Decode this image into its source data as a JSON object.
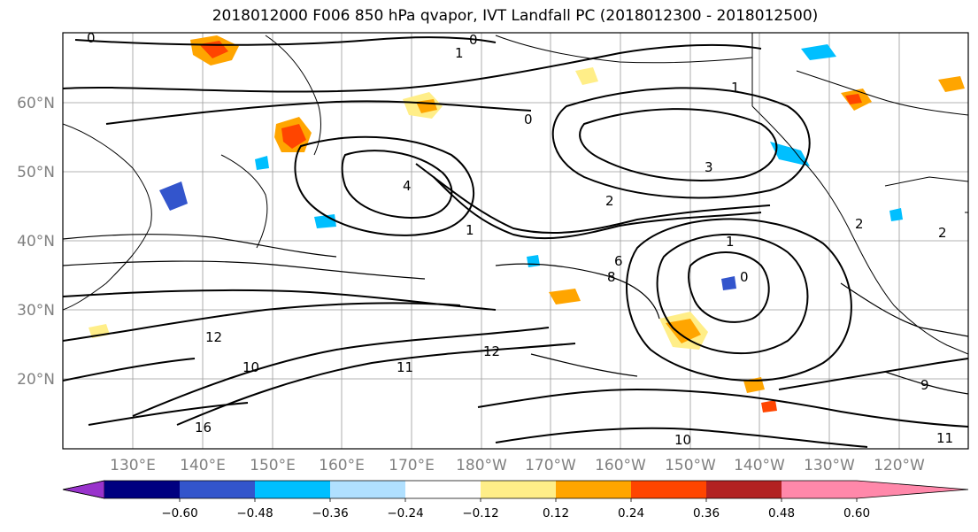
{
  "title": "2018012000 F006 850 hPa qvapor, IVT Landfall PC (2018012300 - 2018012500)",
  "map": {
    "lat_labels": [
      "60°N",
      "50°N",
      "40°N",
      "30°N",
      "20°N"
    ],
    "lon_labels": [
      "130°E",
      "140°E",
      "150°E",
      "160°E",
      "170°E",
      "180°W",
      "170°W",
      "160°W",
      "150°W",
      "140°W",
      "130°W",
      "120°W"
    ],
    "contour_labels": [
      "0",
      "1",
      "0",
      "0",
      "1",
      "3",
      "4",
      "2",
      "0",
      "1",
      "2",
      "1",
      "6",
      "8",
      "10",
      "11",
      "12",
      "16",
      "10",
      "11",
      "12",
      "9",
      "2"
    ],
    "grid": true
  },
  "colorbar": {
    "colors": [
      "#9933cc",
      "#000080",
      "#3355cc",
      "#00bfff",
      "#b0e0ff",
      "#ffffff",
      "#ffee88",
      "#ffa500",
      "#ff4500",
      "#b22222",
      "#ff88aa"
    ],
    "tick_labels": [
      "−0.60",
      "−0.48",
      "−0.36",
      "−0.24",
      "−0.12",
      "0.12",
      "0.24",
      "0.36",
      "0.48",
      "0.60"
    ]
  }
}
